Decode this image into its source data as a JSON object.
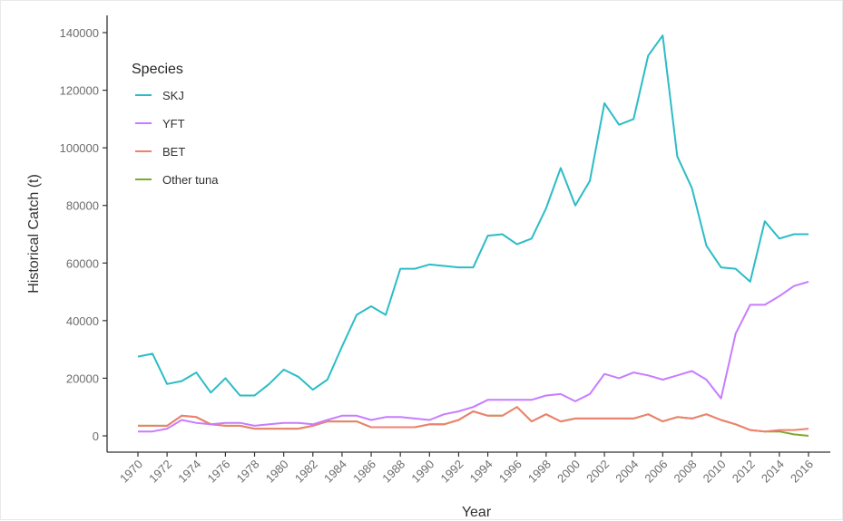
{
  "chart_data": {
    "type": "line",
    "title": "",
    "xlabel": "Year",
    "ylabel": "Historical Catch (t)",
    "xlim": [
      1970,
      2016
    ],
    "ylim": [
      0,
      140000
    ],
    "grid": false,
    "legend": {
      "title": "Species",
      "placement": "top-left"
    },
    "x_ticks": [
      1970,
      1972,
      1974,
      1976,
      1978,
      1980,
      1982,
      1984,
      1986,
      1988,
      1990,
      1992,
      1994,
      1996,
      1998,
      2000,
      2002,
      2004,
      2006,
      2008,
      2010,
      2012,
      2014,
      2016
    ],
    "y_ticks": [
      0,
      20000,
      40000,
      60000,
      80000,
      100000,
      120000,
      140000
    ],
    "x": [
      1970,
      1971,
      1972,
      1973,
      1974,
      1975,
      1976,
      1977,
      1978,
      1979,
      1980,
      1981,
      1982,
      1983,
      1984,
      1985,
      1986,
      1987,
      1988,
      1989,
      1990,
      1991,
      1992,
      1993,
      1994,
      1995,
      1996,
      1997,
      1998,
      1999,
      2000,
      2001,
      2002,
      2003,
      2004,
      2005,
      2006,
      2007,
      2008,
      2009,
      2010,
      2011,
      2012,
      2013,
      2014,
      2015,
      2016
    ],
    "series": [
      {
        "name": "SKJ",
        "color": "#2cbcc6",
        "values": [
          27500,
          28500,
          18000,
          19000,
          22000,
          15000,
          20000,
          14000,
          14000,
          18000,
          23000,
          20500,
          16000,
          19500,
          31000,
          42000,
          45000,
          42000,
          58000,
          58000,
          59500,
          59000,
          58500,
          58500,
          69500,
          70000,
          66500,
          68500,
          79000,
          93000,
          80000,
          88500,
          115500,
          108000,
          110000,
          132000,
          139000,
          97000,
          86000,
          66000,
          58500,
          58000,
          53500,
          74500,
          68500,
          70000,
          70000
        ]
      },
      {
        "name": "YFT",
        "color": "#c77cff",
        "values": [
          1500,
          1500,
          2500,
          5500,
          4500,
          4000,
          4500,
          4500,
          3500,
          4000,
          4500,
          4500,
          4000,
          5500,
          7000,
          7000,
          5500,
          6500,
          6500,
          6000,
          5500,
          7500,
          8500,
          10000,
          12500,
          12500,
          12500,
          12500,
          14000,
          14500,
          12000,
          14500,
          21500,
          20000,
          22000,
          21000,
          19500,
          21000,
          22500,
          19500,
          13000,
          35500,
          45500,
          45500,
          48500,
          52000,
          53500
        ]
      },
      {
        "name": "BET",
        "color": "#f08070",
        "values": [
          3500,
          3500,
          3500,
          7000,
          6500,
          4000,
          3500,
          3500,
          2500,
          2500,
          2500,
          2500,
          3500,
          5000,
          5000,
          5000,
          3000,
          3000,
          3000,
          3000,
          4000,
          4000,
          5500,
          8500,
          7000,
          7000,
          10000,
          5000,
          7500,
          5000,
          6000,
          6000,
          6000,
          6000,
          6000,
          7500,
          5000,
          6500,
          6000,
          7500,
          5500,
          4000,
          2000,
          1500,
          2000,
          2000,
          2500
        ]
      },
      {
        "name": "Other tuna",
        "color": "#7caa2c",
        "values": [
          3500,
          3500,
          3500,
          7000,
          6500,
          4000,
          3500,
          3500,
          2500,
          2500,
          2500,
          2500,
          3500,
          5000,
          5000,
          5000,
          3000,
          3000,
          3000,
          3000,
          4000,
          4000,
          5500,
          8500,
          7000,
          7000,
          10000,
          5000,
          7500,
          5000,
          6000,
          6000,
          6000,
          6000,
          6000,
          7500,
          5000,
          6500,
          6000,
          7500,
          5500,
          4000,
          2000,
          1500,
          1500,
          500,
          0
        ]
      }
    ]
  }
}
